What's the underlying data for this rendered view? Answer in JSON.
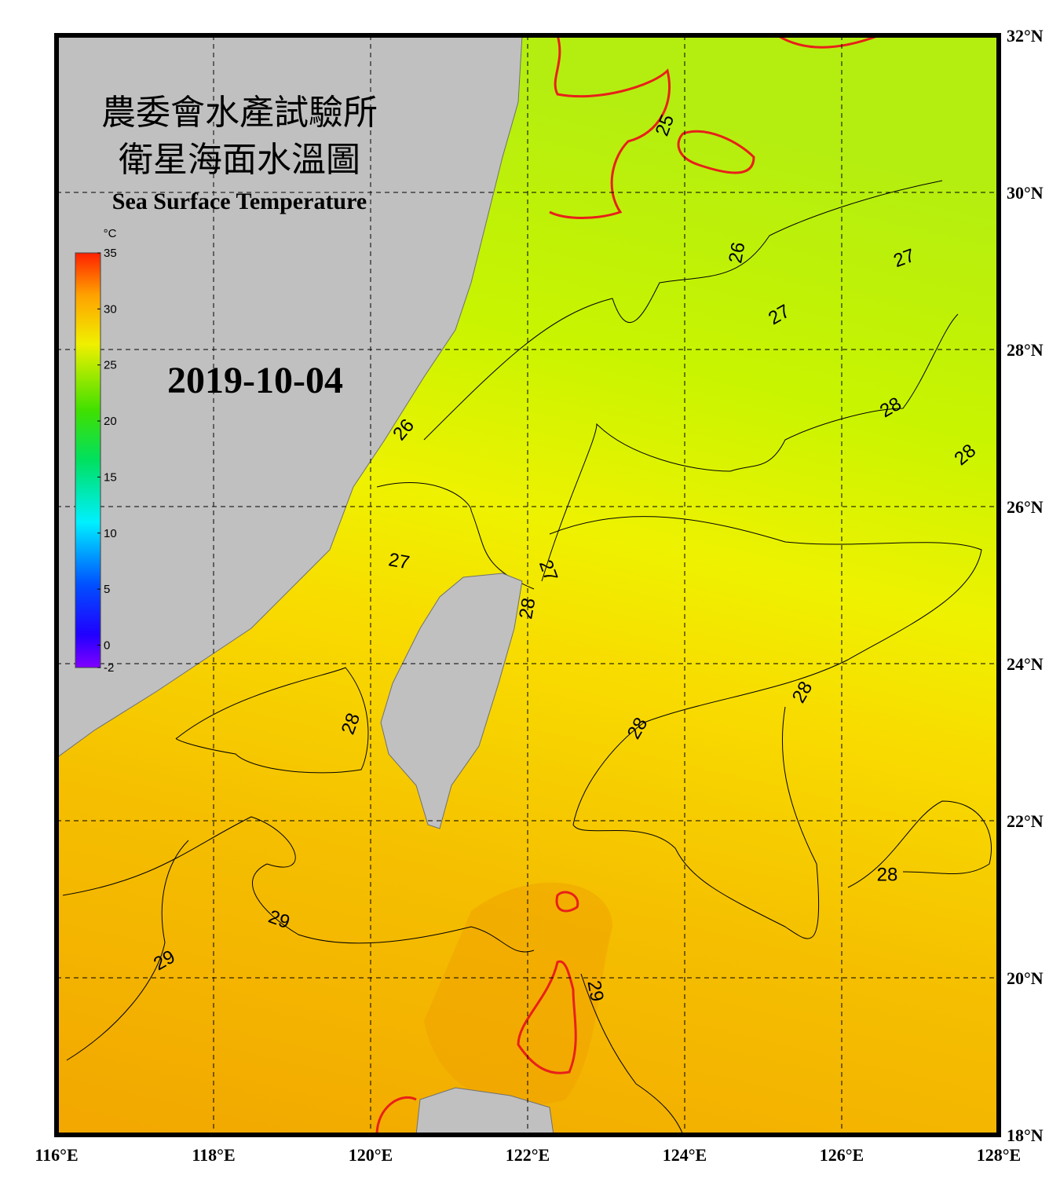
{
  "header": {
    "title_lines": [
      "農委會水產試驗所",
      "衛星海面水溫圖"
    ],
    "subtitle": "Sea Surface Temperature",
    "date": "2019-10-04"
  },
  "colorbar": {
    "unit": "°C",
    "range": [
      -2,
      35
    ],
    "ticks": [
      35,
      30,
      25,
      20,
      15,
      10,
      5,
      0,
      -2
    ]
  },
  "map": {
    "lon_range": [
      116,
      128
    ],
    "lat_range": [
      18,
      32
    ],
    "lon_ticks": [
      {
        "value": 116,
        "label": "116°E"
      },
      {
        "value": 118,
        "label": "118°E"
      },
      {
        "value": 120,
        "label": "120°E"
      },
      {
        "value": 122,
        "label": "122°E"
      },
      {
        "value": 124,
        "label": "124°E"
      },
      {
        "value": 126,
        "label": "126°E"
      },
      {
        "value": 128,
        "label": "128°E"
      }
    ],
    "lat_ticks": [
      {
        "value": 32,
        "label": "32°N"
      },
      {
        "value": 30,
        "label": "30°N"
      },
      {
        "value": 28,
        "label": "28°N"
      },
      {
        "value": 26,
        "label": "26°N"
      },
      {
        "value": 24,
        "label": "24°N"
      },
      {
        "value": 22,
        "label": "22°N"
      },
      {
        "value": 20,
        "label": "20°N"
      },
      {
        "value": 18,
        "label": "18°N"
      }
    ],
    "contour_labels": [
      "25",
      "26",
      "26",
      "27",
      "27",
      "27",
      "27",
      "28",
      "28",
      "28",
      "28",
      "28",
      "28",
      "28",
      "29",
      "29",
      "29"
    ]
  }
}
